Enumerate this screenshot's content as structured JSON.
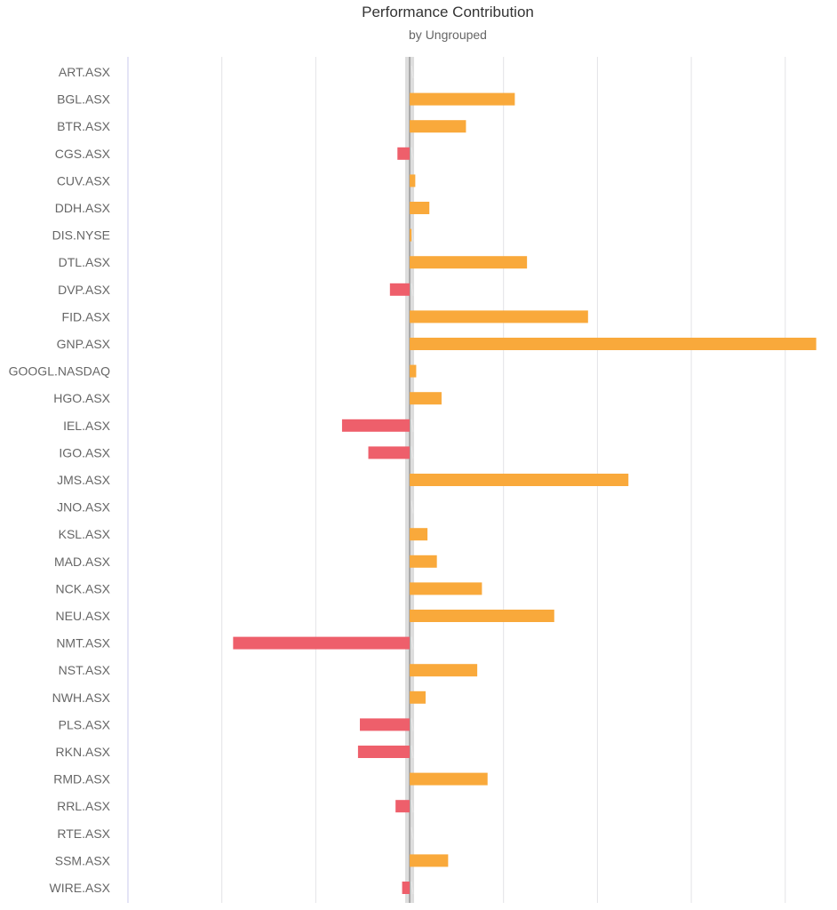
{
  "chart_data": {
    "type": "bar",
    "orientation": "horizontal",
    "title": "Performance Contribution",
    "subtitle": "by Ungrouped",
    "categories": [
      "ART.ASX",
      "BGL.ASX",
      "BTR.ASX",
      "CGS.ASX",
      "CUV.ASX",
      "DDH.ASX",
      "DIS.NYSE",
      "DTL.ASX",
      "DVP.ASX",
      "FID.ASX",
      "GNP.ASX",
      "GOOGL.NASDAQ",
      "HGO.ASX",
      "IEL.ASX",
      "IGO.ASX",
      "JMS.ASX",
      "JNO.ASX",
      "KSL.ASX",
      "MAD.ASX",
      "NCK.ASX",
      "NEU.ASX",
      "NMT.ASX",
      "NST.ASX",
      "NWH.ASX",
      "PLS.ASX",
      "RKN.ASX",
      "RMD.ASX",
      "RRL.ASX",
      "RTE.ASX",
      "SSM.ASX",
      "WIRE.ASX"
    ],
    "values": [
      0,
      1.12,
      0.6,
      -0.13,
      0.06,
      0.21,
      0.02,
      1.25,
      -0.21,
      1.9,
      4.33,
      0.07,
      0.34,
      -0.72,
      -0.44,
      2.33,
      0,
      0.19,
      0.29,
      0.77,
      1.54,
      -1.88,
      0.72,
      0.17,
      -0.53,
      -0.55,
      0.83,
      -0.15,
      0,
      0.41,
      -0.08
    ],
    "xlim": [
      -3,
      4.4
    ],
    "grid": true,
    "colors": {
      "positive": "#f9a93b",
      "negative": "#ee5f6b",
      "grid": "#e3e3e6",
      "axis_left": "#c8c8ee",
      "zero_band": "#dddddd",
      "zero_line": "#777777"
    }
  }
}
